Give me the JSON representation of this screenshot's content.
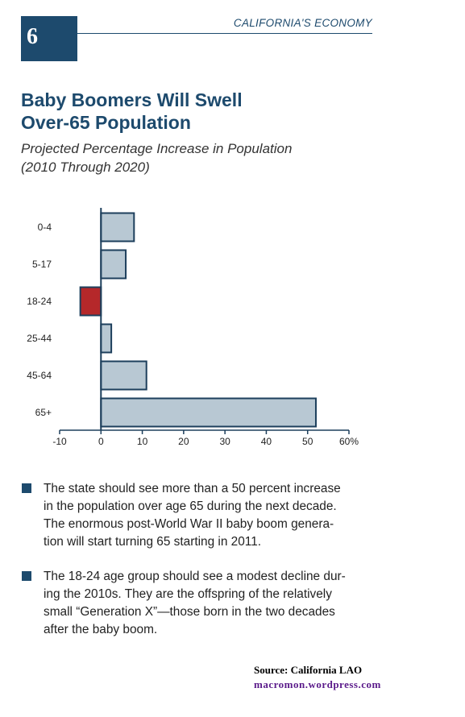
{
  "header": {
    "page_number": "6",
    "section_title": "CALIFORNIA'S ECONOMY"
  },
  "title": {
    "line1": "Baby Boomers Will Swell",
    "line2": "Over-65 Population"
  },
  "subtitle": {
    "line1": "Projected Percentage Increase in Population",
    "line2": "(2010 Through  2020)"
  },
  "colors": {
    "brand_navy": "#1d4a6d",
    "bar_positive": "#b8c8d3",
    "bar_negative": "#b5282a",
    "bar_outline": "#1d3f5c"
  },
  "chart_data": {
    "type": "bar",
    "orientation": "horizontal",
    "categories": [
      "0-4",
      "5-17",
      "18-24",
      "25-44",
      "45-64",
      "65+"
    ],
    "values": [
      8,
      6,
      -5,
      2.5,
      11,
      52
    ],
    "xlim": [
      -10,
      60
    ],
    "x_ticks": [
      "-10",
      "0",
      "10",
      "20",
      "30",
      "40",
      "50",
      "60%"
    ],
    "x_tick_values": [
      -10,
      0,
      10,
      20,
      30,
      40,
      50,
      60
    ],
    "grid": false,
    "legend": "none"
  },
  "bullets": [
    {
      "lines": [
        "The state should see more than a 50 percent increase",
        "in the population over age 65 during the next decade.",
        "The enormous post-World War II baby boom genera-",
        "tion will start turning 65 starting in 2011."
      ]
    },
    {
      "lines": [
        "The 18-24 age group should see a modest decline dur-",
        "ing the 2010s. They are the offspring of the relatively",
        "small “Generation X”—those born in the two decades",
        "after the baby boom."
      ]
    }
  ],
  "footer": {
    "source": "Source:   California LAO",
    "watermark": "macromon.wordpress.com"
  }
}
